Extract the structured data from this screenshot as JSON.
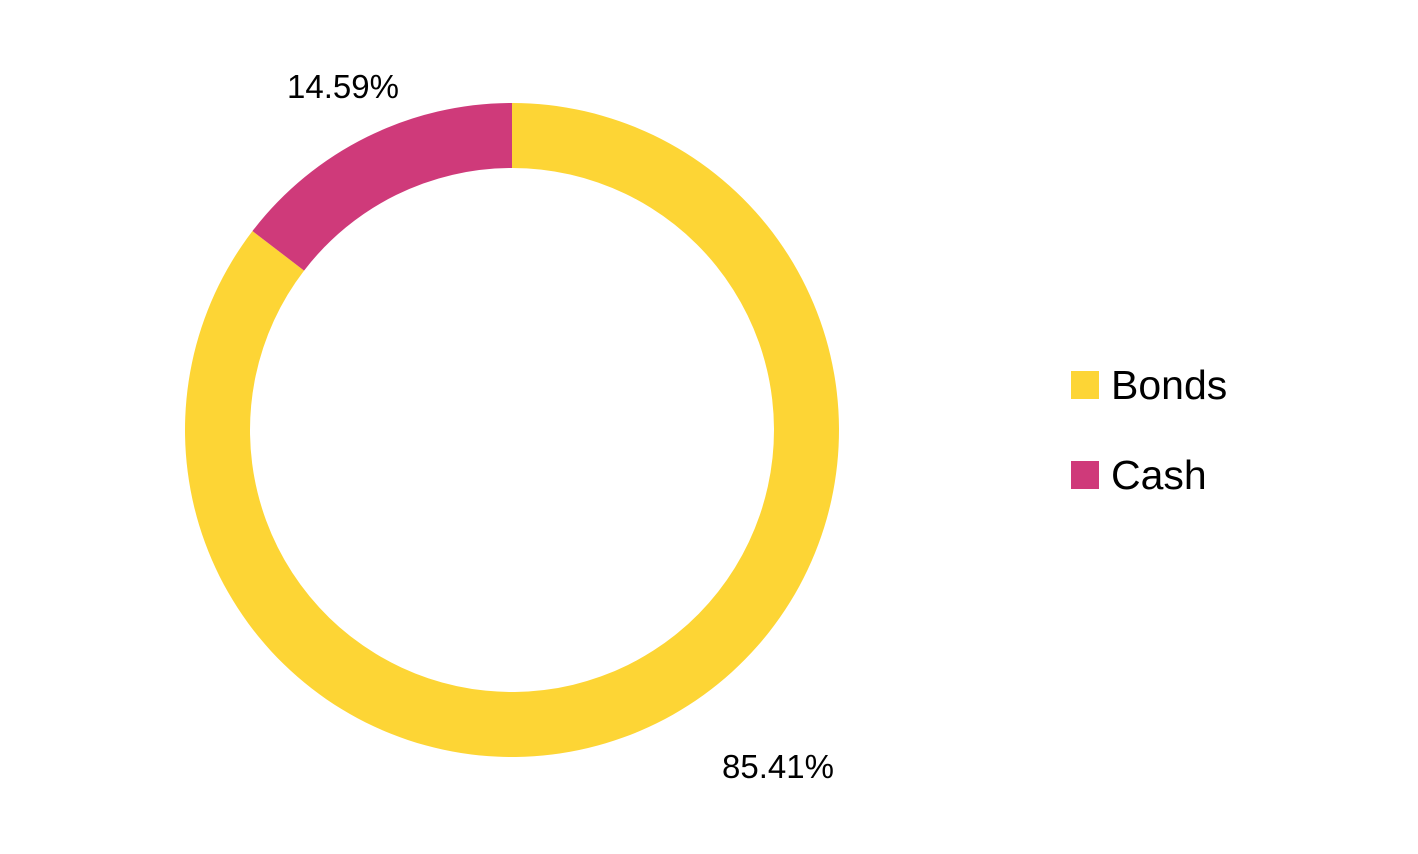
{
  "chart_data": {
    "type": "pie",
    "variant": "donut",
    "series": [
      {
        "name": "Bonds",
        "value": 85.41,
        "label": "85.41%",
        "color": "#FDD535"
      },
      {
        "name": "Cash",
        "value": 14.59,
        "label": "14.59%",
        "color": "#CF3A7A"
      }
    ],
    "legend": {
      "position": "right",
      "items": [
        "Bonds",
        "Cash"
      ]
    },
    "title": ""
  }
}
